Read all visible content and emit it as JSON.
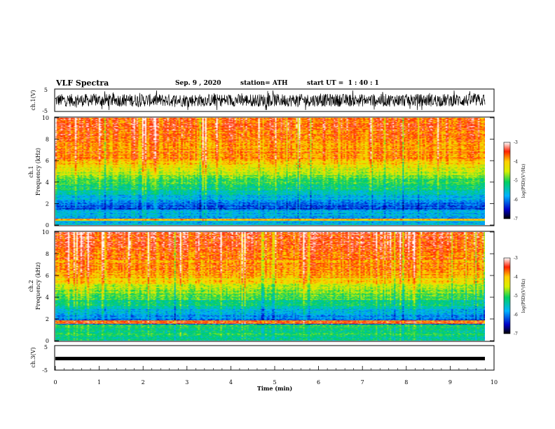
{
  "header": {
    "title": "VLF Spectra",
    "date": "Sep. 9 , 2020",
    "station": "station= ATH",
    "start": "start UT =  1 : 40 : 1"
  },
  "chart_data": [
    {
      "type": "line",
      "ylabel": "ch.1(V)",
      "ylim": [
        -5,
        5
      ],
      "yticks": [
        "5",
        "-5"
      ],
      "x_range_min": [
        0,
        9.83
      ],
      "description_visible": "black noisy waveform around 0 V, amplitude roughly -3 to 3 V"
    },
    {
      "type": "heatmap",
      "ylabel": "ch.1\nFrequency (kHz)",
      "ylim": [
        0,
        10
      ],
      "yticks": [
        "0",
        "2",
        "4",
        "6",
        "8",
        "10"
      ],
      "colorbar": {
        "label": "log(PSD)(V²/Hz)",
        "range": [
          -7,
          -3
        ],
        "ticks": [
          "-3",
          "-4",
          "-5",
          "-6",
          "-7"
        ]
      }
    },
    {
      "type": "heatmap",
      "ylabel": "ch.2\nFrequency (kHz)",
      "ylim": [
        0,
        10
      ],
      "yticks": [
        "0",
        "2",
        "4",
        "6",
        "8",
        "10"
      ],
      "colorbar": {
        "label": "log(PSD)(V²/Hz)",
        "range": [
          -7,
          -3
        ],
        "ticks": [
          "-3",
          "-4",
          "-5",
          "-6",
          "-7"
        ]
      }
    },
    {
      "type": "line",
      "ylabel": "ch.3(V)",
      "ylim": [
        -5,
        5
      ],
      "yticks": [
        "5",
        "-5"
      ],
      "constant_value": 0,
      "xlabel": "Time (min)",
      "xlim": [
        0,
        10
      ],
      "xticks": [
        "0",
        "1",
        "2",
        "3",
        "4",
        "5",
        "6",
        "7",
        "8",
        "9",
        "10"
      ]
    }
  ]
}
